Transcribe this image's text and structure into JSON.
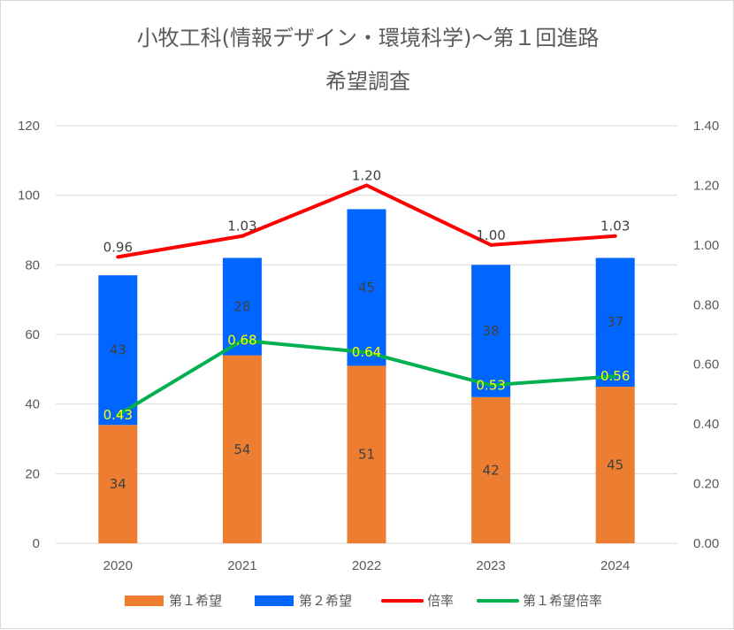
{
  "chart_data": {
    "type": "bar",
    "stacked": true,
    "title_line1": "小牧工科(情報デザイン・環境科学)～第１回進路",
    "title_line2": "希望調査",
    "categories": [
      "2020",
      "2021",
      "2022",
      "2023",
      "2024"
    ],
    "y_left": {
      "min": 0,
      "max": 120,
      "step": 20,
      "ticks": [
        "0",
        "20",
        "40",
        "60",
        "80",
        "100",
        "120"
      ]
    },
    "y_right": {
      "min": 0,
      "max": 1.4,
      "step": 0.2,
      "ticks": [
        "0.00",
        "0.20",
        "0.40",
        "0.60",
        "0.80",
        "1.00",
        "1.20",
        "1.40"
      ]
    },
    "series": [
      {
        "name": "第１希望",
        "kind": "bar",
        "axis": "left",
        "color": "#ed7d31",
        "values": [
          34,
          54,
          51,
          42,
          45
        ],
        "labels": [
          "34",
          "54",
          "51",
          "42",
          "45"
        ]
      },
      {
        "name": "第２希望",
        "kind": "bar",
        "axis": "left",
        "color": "#0066ff",
        "values": [
          43,
          28,
          45,
          38,
          37
        ],
        "labels": [
          "43",
          "28",
          "45",
          "38",
          "37"
        ]
      },
      {
        "name": "倍率",
        "kind": "line",
        "axis": "right",
        "color": "#ff0000",
        "values": [
          0.96,
          1.03,
          1.2,
          1.0,
          1.03
        ],
        "labels": [
          "0.96",
          "1.03",
          "1.20",
          "1.00",
          "1.03"
        ]
      },
      {
        "name": "第１希望倍率",
        "kind": "line",
        "axis": "right",
        "color": "#00b050",
        "values": [
          0.43,
          0.68,
          0.64,
          0.53,
          0.56
        ],
        "labels": [
          "0.43",
          "0.68",
          "0.64",
          "0.53",
          "0.56"
        ]
      }
    ],
    "legend_position": "bottom",
    "grid": true
  }
}
